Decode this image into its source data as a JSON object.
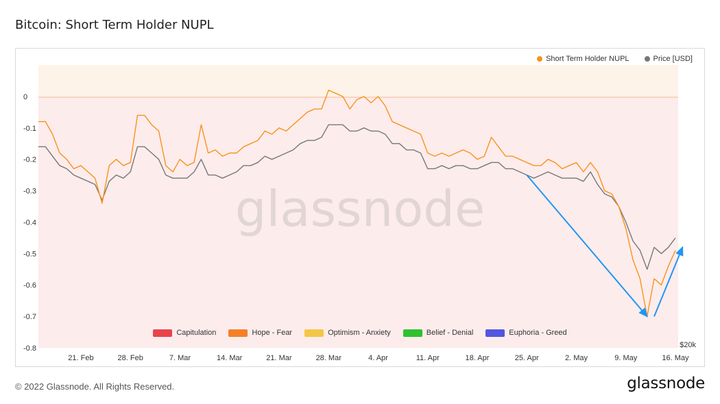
{
  "title": "Bitcoin: Short Term Holder NUPL",
  "footer": "© 2022 Glassnode. All Rights Reserved.",
  "brand": "glassnode",
  "watermark": "glassnode",
  "legend_top": [
    {
      "label": "Short Term Holder NUPL",
      "color": "#f7931a"
    },
    {
      "label": "Price [USD]",
      "color": "#777777"
    }
  ],
  "legend_bottom": [
    {
      "label": "Capitulation",
      "color": "#e8434b"
    },
    {
      "label": "Hope - Fear",
      "color": "#f47f28"
    },
    {
      "label": "Optimism - Anxiety",
      "color": "#f3c745"
    },
    {
      "label": "Belief - Denial",
      "color": "#2fc130"
    },
    {
      "label": "Euphoria - Greed",
      "color": "#5355df"
    }
  ],
  "chart_data": {
    "type": "line",
    "title": "Bitcoin: Short Term Holder NUPL",
    "x_ticks": [
      "21. Feb",
      "28. Feb",
      "7. Mar",
      "14. Mar",
      "21. Mar",
      "28. Mar",
      "4. Apr",
      "11. Apr",
      "18. Apr",
      "25. Apr",
      "2. May",
      "9. May",
      "16. May"
    ],
    "y_ticks": [
      "0",
      "-0.1",
      "-0.2",
      "-0.3",
      "-0.4",
      "-0.5",
      "-0.6",
      "-0.7",
      "-0.8"
    ],
    "ylim": [
      -0.8,
      0.1
    ],
    "right_axis_label": "$20k",
    "grid": false,
    "legend_placement": "top-right",
    "x_start": "2022-02-15",
    "x_end": "2022-05-16",
    "series": [
      {
        "name": "Short Term Holder NUPL",
        "color": "#f7931a",
        "points": [
          [
            "2022-02-15",
            -0.08
          ],
          [
            "2022-02-16",
            -0.08
          ],
          [
            "2022-02-17",
            -0.12
          ],
          [
            "2022-02-18",
            -0.18
          ],
          [
            "2022-02-19",
            -0.2
          ],
          [
            "2022-02-20",
            -0.23
          ],
          [
            "2022-02-21",
            -0.22
          ],
          [
            "2022-02-22",
            -0.24
          ],
          [
            "2022-02-23",
            -0.26
          ],
          [
            "2022-02-24",
            -0.34
          ],
          [
            "2022-02-25",
            -0.22
          ],
          [
            "2022-02-26",
            -0.2
          ],
          [
            "2022-02-27",
            -0.22
          ],
          [
            "2022-02-28",
            -0.21
          ],
          [
            "2022-03-01",
            -0.06
          ],
          [
            "2022-03-02",
            -0.06
          ],
          [
            "2022-03-03",
            -0.09
          ],
          [
            "2022-03-04",
            -0.11
          ],
          [
            "2022-03-05",
            -0.22
          ],
          [
            "2022-03-06",
            -0.24
          ],
          [
            "2022-03-07",
            -0.2
          ],
          [
            "2022-03-08",
            -0.22
          ],
          [
            "2022-03-09",
            -0.21
          ],
          [
            "2022-03-10",
            -0.09
          ],
          [
            "2022-03-11",
            -0.18
          ],
          [
            "2022-03-12",
            -0.17
          ],
          [
            "2022-03-13",
            -0.19
          ],
          [
            "2022-03-14",
            -0.18
          ],
          [
            "2022-03-15",
            -0.18
          ],
          [
            "2022-03-16",
            -0.16
          ],
          [
            "2022-03-17",
            -0.15
          ],
          [
            "2022-03-18",
            -0.14
          ],
          [
            "2022-03-19",
            -0.11
          ],
          [
            "2022-03-20",
            -0.12
          ],
          [
            "2022-03-21",
            -0.1
          ],
          [
            "2022-03-22",
            -0.11
          ],
          [
            "2022-03-23",
            -0.09
          ],
          [
            "2022-03-24",
            -0.07
          ],
          [
            "2022-03-25",
            -0.05
          ],
          [
            "2022-03-26",
            -0.04
          ],
          [
            "2022-03-27",
            -0.04
          ],
          [
            "2022-03-28",
            0.02
          ],
          [
            "2022-03-29",
            0.01
          ],
          [
            "2022-03-30",
            0.0
          ],
          [
            "2022-03-31",
            -0.04
          ],
          [
            "2022-04-01",
            -0.01
          ],
          [
            "2022-04-02",
            0.0
          ],
          [
            "2022-04-03",
            -0.02
          ],
          [
            "2022-04-04",
            0.0
          ],
          [
            "2022-04-05",
            -0.03
          ],
          [
            "2022-04-06",
            -0.08
          ],
          [
            "2022-04-07",
            -0.09
          ],
          [
            "2022-04-08",
            -0.1
          ],
          [
            "2022-04-09",
            -0.11
          ],
          [
            "2022-04-10",
            -0.12
          ],
          [
            "2022-04-11",
            -0.18
          ],
          [
            "2022-04-12",
            -0.19
          ],
          [
            "2022-04-13",
            -0.18
          ],
          [
            "2022-04-14",
            -0.19
          ],
          [
            "2022-04-15",
            -0.18
          ],
          [
            "2022-04-16",
            -0.17
          ],
          [
            "2022-04-17",
            -0.18
          ],
          [
            "2022-04-18",
            -0.2
          ],
          [
            "2022-04-19",
            -0.19
          ],
          [
            "2022-04-20",
            -0.13
          ],
          [
            "2022-04-21",
            -0.16
          ],
          [
            "2022-04-22",
            -0.19
          ],
          [
            "2022-04-23",
            -0.19
          ],
          [
            "2022-04-24",
            -0.2
          ],
          [
            "2022-04-25",
            -0.21
          ],
          [
            "2022-04-26",
            -0.22
          ],
          [
            "2022-04-27",
            -0.22
          ],
          [
            "2022-04-28",
            -0.2
          ],
          [
            "2022-04-29",
            -0.21
          ],
          [
            "2022-04-30",
            -0.23
          ],
          [
            "2022-05-01",
            -0.22
          ],
          [
            "2022-05-02",
            -0.21
          ],
          [
            "2022-05-03",
            -0.24
          ],
          [
            "2022-05-04",
            -0.21
          ],
          [
            "2022-05-05",
            -0.24
          ],
          [
            "2022-05-06",
            -0.3
          ],
          [
            "2022-05-07",
            -0.31
          ],
          [
            "2022-05-08",
            -0.35
          ],
          [
            "2022-05-09",
            -0.42
          ],
          [
            "2022-05-10",
            -0.52
          ],
          [
            "2022-05-11",
            -0.58
          ],
          [
            "2022-05-12",
            -0.7
          ],
          [
            "2022-05-13",
            -0.58
          ],
          [
            "2022-05-14",
            -0.6
          ],
          [
            "2022-05-15",
            -0.54
          ],
          [
            "2022-05-16",
            -0.49
          ]
        ]
      },
      {
        "name": "Price [USD]",
        "color": "#777777",
        "points": [
          [
            "2022-02-15",
            -0.16
          ],
          [
            "2022-02-16",
            -0.16
          ],
          [
            "2022-02-17",
            -0.19
          ],
          [
            "2022-02-18",
            -0.22
          ],
          [
            "2022-02-19",
            -0.23
          ],
          [
            "2022-02-20",
            -0.25
          ],
          [
            "2022-02-21",
            -0.26
          ],
          [
            "2022-02-22",
            -0.27
          ],
          [
            "2022-02-23",
            -0.28
          ],
          [
            "2022-02-24",
            -0.33
          ],
          [
            "2022-02-25",
            -0.27
          ],
          [
            "2022-02-26",
            -0.25
          ],
          [
            "2022-02-27",
            -0.26
          ],
          [
            "2022-02-28",
            -0.24
          ],
          [
            "2022-03-01",
            -0.16
          ],
          [
            "2022-03-02",
            -0.16
          ],
          [
            "2022-03-03",
            -0.18
          ],
          [
            "2022-03-04",
            -0.2
          ],
          [
            "2022-03-05",
            -0.25
          ],
          [
            "2022-03-06",
            -0.26
          ],
          [
            "2022-03-07",
            -0.26
          ],
          [
            "2022-03-08",
            -0.26
          ],
          [
            "2022-03-09",
            -0.24
          ],
          [
            "2022-03-10",
            -0.2
          ],
          [
            "2022-03-11",
            -0.25
          ],
          [
            "2022-03-12",
            -0.25
          ],
          [
            "2022-03-13",
            -0.26
          ],
          [
            "2022-03-14",
            -0.25
          ],
          [
            "2022-03-15",
            -0.24
          ],
          [
            "2022-03-16",
            -0.22
          ],
          [
            "2022-03-17",
            -0.22
          ],
          [
            "2022-03-18",
            -0.21
          ],
          [
            "2022-03-19",
            -0.19
          ],
          [
            "2022-03-20",
            -0.2
          ],
          [
            "2022-03-21",
            -0.19
          ],
          [
            "2022-03-22",
            -0.18
          ],
          [
            "2022-03-23",
            -0.17
          ],
          [
            "2022-03-24",
            -0.15
          ],
          [
            "2022-03-25",
            -0.14
          ],
          [
            "2022-03-26",
            -0.14
          ],
          [
            "2022-03-27",
            -0.13
          ],
          [
            "2022-03-28",
            -0.09
          ],
          [
            "2022-03-29",
            -0.09
          ],
          [
            "2022-03-30",
            -0.09
          ],
          [
            "2022-03-31",
            -0.11
          ],
          [
            "2022-04-01",
            -0.11
          ],
          [
            "2022-04-02",
            -0.1
          ],
          [
            "2022-04-03",
            -0.11
          ],
          [
            "2022-04-04",
            -0.11
          ],
          [
            "2022-04-05",
            -0.12
          ],
          [
            "2022-04-06",
            -0.15
          ],
          [
            "2022-04-07",
            -0.15
          ],
          [
            "2022-04-08",
            -0.17
          ],
          [
            "2022-04-09",
            -0.17
          ],
          [
            "2022-04-10",
            -0.18
          ],
          [
            "2022-04-11",
            -0.23
          ],
          [
            "2022-04-12",
            -0.23
          ],
          [
            "2022-04-13",
            -0.22
          ],
          [
            "2022-04-14",
            -0.23
          ],
          [
            "2022-04-15",
            -0.22
          ],
          [
            "2022-04-16",
            -0.22
          ],
          [
            "2022-04-17",
            -0.23
          ],
          [
            "2022-04-18",
            -0.23
          ],
          [
            "2022-04-19",
            -0.22
          ],
          [
            "2022-04-20",
            -0.21
          ],
          [
            "2022-04-21",
            -0.21
          ],
          [
            "2022-04-22",
            -0.23
          ],
          [
            "2022-04-23",
            -0.23
          ],
          [
            "2022-04-24",
            -0.24
          ],
          [
            "2022-04-25",
            -0.25
          ],
          [
            "2022-04-26",
            -0.26
          ],
          [
            "2022-04-27",
            -0.25
          ],
          [
            "2022-04-28",
            -0.24
          ],
          [
            "2022-04-29",
            -0.25
          ],
          [
            "2022-04-30",
            -0.26
          ],
          [
            "2022-05-01",
            -0.26
          ],
          [
            "2022-05-02",
            -0.26
          ],
          [
            "2022-05-03",
            -0.27
          ],
          [
            "2022-05-04",
            -0.24
          ],
          [
            "2022-05-05",
            -0.28
          ],
          [
            "2022-05-06",
            -0.31
          ],
          [
            "2022-05-07",
            -0.32
          ],
          [
            "2022-05-08",
            -0.35
          ],
          [
            "2022-05-09",
            -0.4
          ],
          [
            "2022-05-10",
            -0.46
          ],
          [
            "2022-05-11",
            -0.49
          ],
          [
            "2022-05-12",
            -0.55
          ],
          [
            "2022-05-13",
            -0.48
          ],
          [
            "2022-05-14",
            -0.5
          ],
          [
            "2022-05-15",
            -0.48
          ],
          [
            "2022-05-16",
            -0.45
          ]
        ]
      }
    ],
    "annotations": [
      {
        "type": "arrow",
        "from": [
          "2022-04-25",
          -0.25
        ],
        "to": [
          "2022-05-12",
          -0.7
        ],
        "color": "#2196f3"
      },
      {
        "type": "arrow",
        "from": [
          "2022-05-13",
          -0.7
        ],
        "to": [
          "2022-05-17",
          -0.48
        ],
        "color": "#2196f3"
      }
    ]
  }
}
